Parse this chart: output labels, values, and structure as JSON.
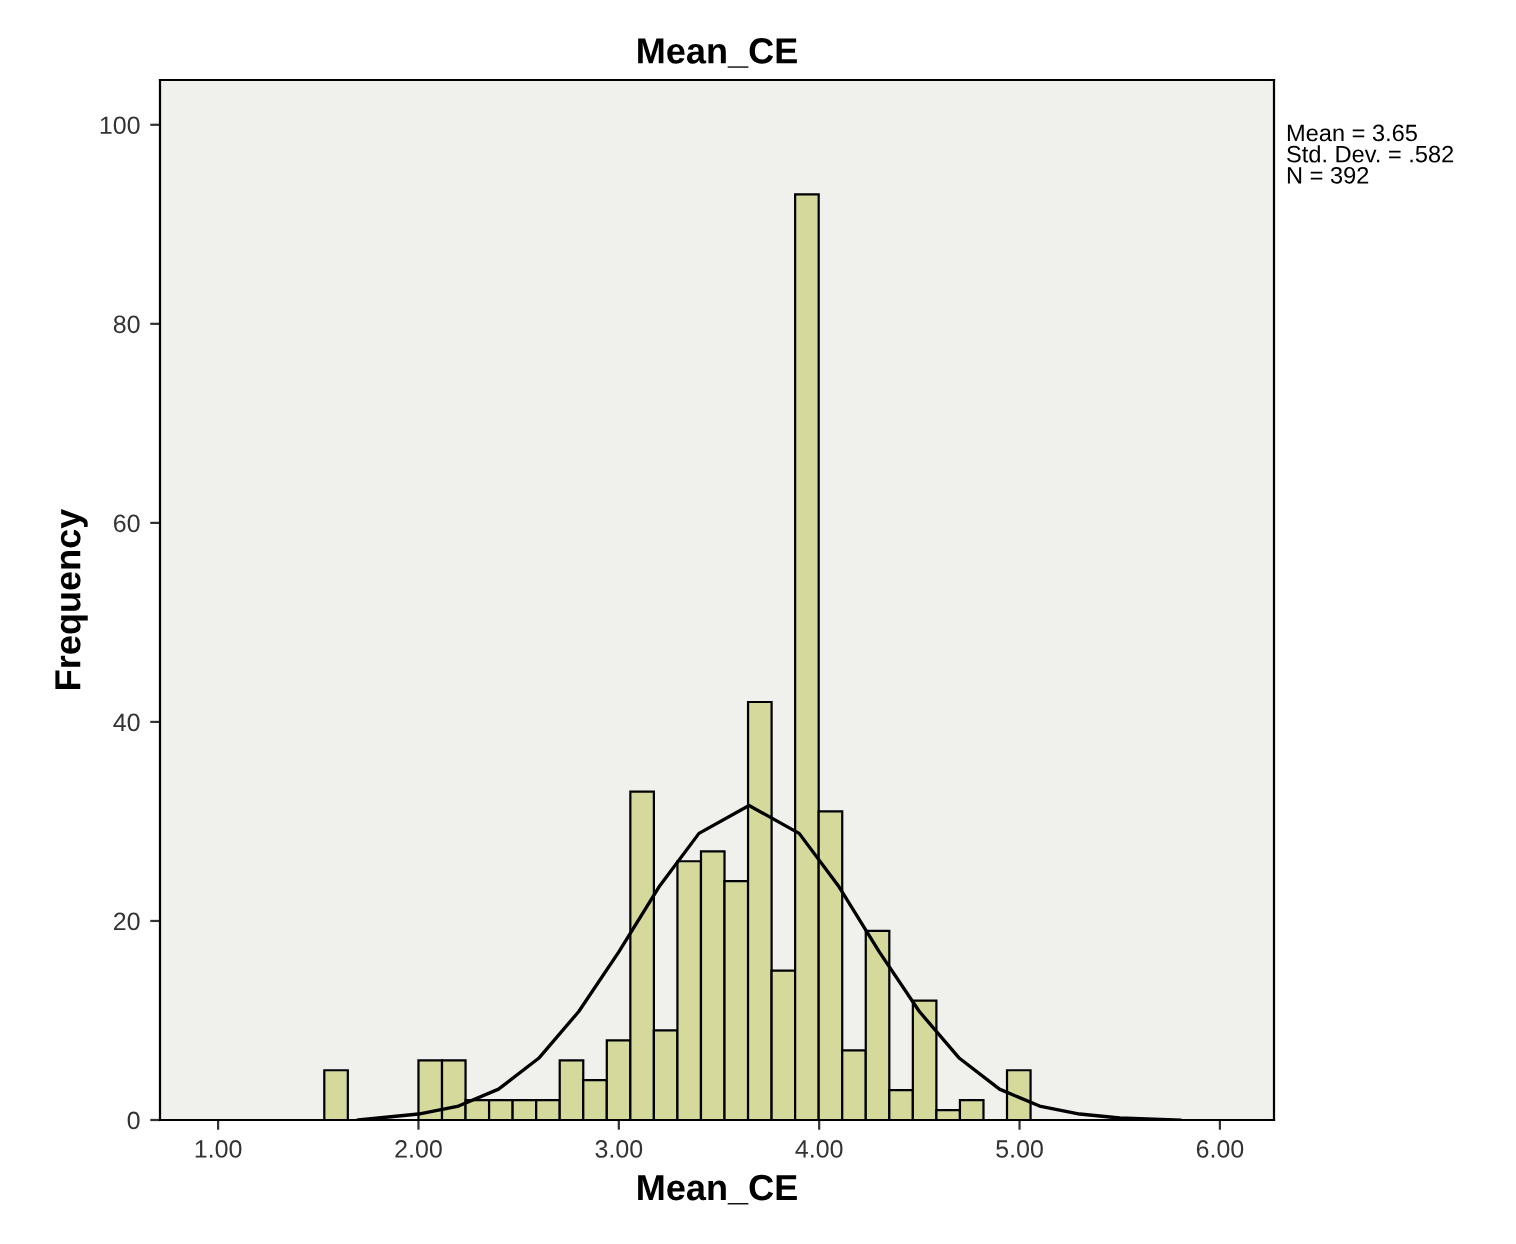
{
  "chart_data": {
    "type": "histogram",
    "title": "Mean_CE",
    "xlabel": "Mean_CE",
    "ylabel": "Frequency",
    "bins": [
      1.53,
      1.6475,
      1.765,
      1.8825,
      2.0,
      2.1175,
      2.235,
      2.3525,
      2.47,
      2.5875,
      2.705,
      2.8225,
      2.94,
      3.0575,
      3.175,
      3.2925,
      3.41,
      3.5275,
      3.645,
      3.7625,
      3.88,
      3.9975,
      4.115,
      4.2325,
      4.35,
      4.4675,
      4.585,
      4.7025,
      4.82,
      4.9375,
      5.055
    ],
    "values": [
      5,
      0,
      0,
      0,
      6,
      6,
      2,
      2,
      2,
      2,
      6,
      4,
      8,
      33,
      9,
      26,
      27,
      24,
      42,
      15,
      93,
      31,
      7,
      19,
      3,
      12,
      1,
      2,
      0,
      5
    ],
    "color": "#d5da9c",
    "series": [
      {
        "type": "line",
        "color": "#000000",
        "x": [
          1.7,
          1.8,
          2.0,
          2.2,
          2.4,
          2.6,
          2.8,
          3.0,
          3.2,
          3.4,
          3.65,
          3.9,
          4.1,
          4.3,
          4.5,
          4.7,
          4.9,
          5.1,
          5.3,
          5.5,
          5.8
        ],
        "values": [
          0.0,
          0.2,
          0.6,
          1.4,
          3.1,
          6.2,
          10.9,
          16.9,
          23.4,
          28.8,
          31.6,
          28.8,
          23.4,
          16.9,
          10.9,
          6.2,
          3.1,
          1.4,
          0.6,
          0.2,
          0.0
        ]
      }
    ],
    "xlim": [
      0.71,
      6.27
    ],
    "ylim": [
      0,
      104.5
    ],
    "xticks": [
      {
        "value": 1,
        "label": "1.00"
      },
      {
        "value": 2,
        "label": "2.00"
      },
      {
        "value": 3,
        "label": "3.00"
      },
      {
        "value": 4,
        "label": "4.00"
      },
      {
        "value": 5,
        "label": "5.00"
      },
      {
        "value": 6,
        "label": "6.00"
      }
    ],
    "yticks": [
      0,
      20,
      40,
      60,
      80,
      100
    ],
    "annotations": [
      "Mean = 3.65\nStd. Dev. = .582\nN = 392"
    ],
    "grid": false,
    "legend": false
  }
}
